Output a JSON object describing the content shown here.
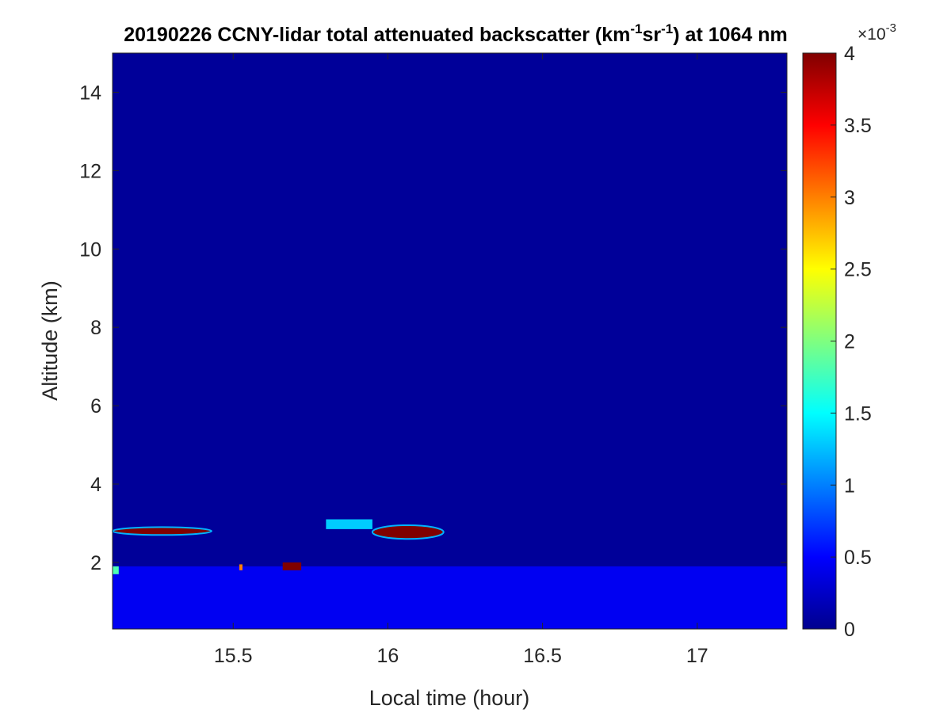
{
  "chart_data": {
    "type": "heatmap",
    "title": {
      "prefix": "20190226 CCNY-lidar total attenuated backscatter (km",
      "sup1": "-1",
      "mid": "sr",
      "sup2": "-1",
      "suffix": ") at 1064 nm"
    },
    "xlabel": "Local time (hour)",
    "ylabel": "Altitude (km)",
    "xlim": [
      15.11,
      17.29
    ],
    "ylim": [
      0.3,
      15.0
    ],
    "xticks": [
      15.5,
      16,
      16.5,
      17
    ],
    "xtick_labels": [
      "15.5",
      "16",
      "16.5",
      "17"
    ],
    "yticks": [
      2,
      4,
      6,
      8,
      10,
      12,
      14
    ],
    "ytick_labels": [
      "2",
      "4",
      "6",
      "8",
      "10",
      "12",
      "14"
    ],
    "colorbar": {
      "colormap": "jet",
      "clim": [
        0,
        4
      ],
      "ticks": [
        0,
        0.5,
        1,
        1.5,
        2,
        2.5,
        3,
        3.5,
        4
      ],
      "tick_labels": [
        "0",
        "0.5",
        "1",
        "1.5",
        "2",
        "2.5",
        "3",
        "3.5",
        "4"
      ],
      "multiplier_base": "×10",
      "multiplier_exp": "-3"
    },
    "background_value": 0.1,
    "features": [
      {
        "kind": "boundary-layer",
        "x": [
          15.11,
          17.29
        ],
        "y": [
          0.3,
          1.9
        ],
        "value": 0.45
      },
      {
        "kind": "cloud-layer",
        "x": [
          15.11,
          15.43
        ],
        "y": [
          2.7,
          2.9
        ],
        "value": 4.0
      },
      {
        "kind": "cloud-layer",
        "x": [
          15.95,
          16.18
        ],
        "y": [
          2.6,
          2.95
        ],
        "value": 4.0
      },
      {
        "kind": "thin-layer",
        "x": [
          15.8,
          15.95
        ],
        "y": [
          2.85,
          3.1
        ],
        "value": 1.3
      },
      {
        "kind": "spot",
        "x": [
          15.52,
          15.53
        ],
        "y": [
          1.8,
          1.95
        ],
        "value": 3.0
      },
      {
        "kind": "spot",
        "x": [
          15.66,
          15.72
        ],
        "y": [
          1.8,
          2.0
        ],
        "value": 4.0
      },
      {
        "kind": "spot",
        "x": [
          15.11,
          15.13
        ],
        "y": [
          1.7,
          1.9
        ],
        "value": 1.8
      }
    ]
  }
}
